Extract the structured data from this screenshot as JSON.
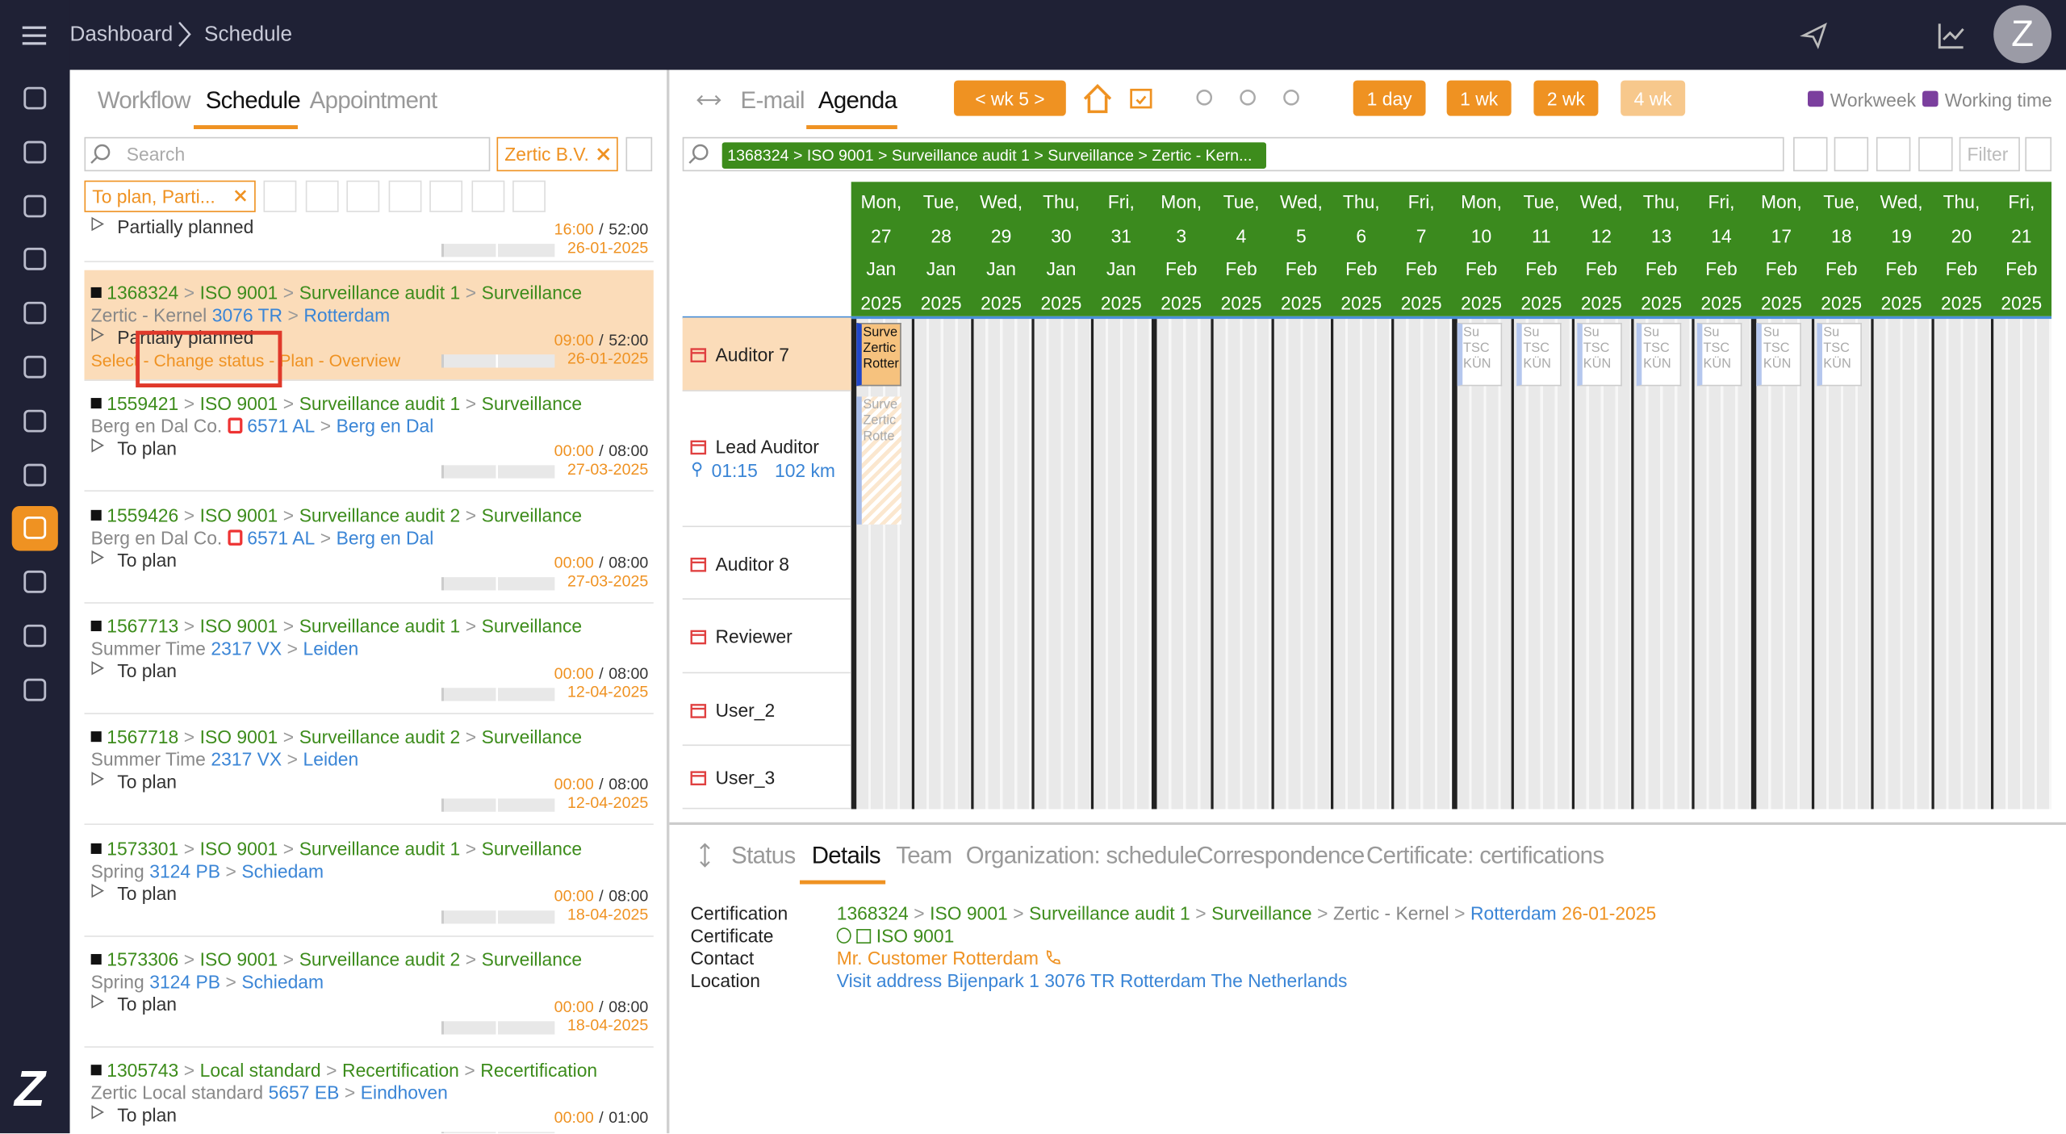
{
  "header": {
    "breadcrumb": [
      "Dashboard",
      "Schedule"
    ],
    "avatar": "Z",
    "logo": "Z"
  },
  "separator": ">",
  "time_separator": "/",
  "left_panel": {
    "tabs": [
      "Workflow",
      "Schedule",
      "Appointment"
    ],
    "active_tab": 1,
    "search_placeholder": "Search",
    "organization_filter": "Zertic B.V.",
    "status_filter": "To plan, Parti...",
    "items": [
      {
        "status": "Partially planned",
        "start": "16:00",
        "duration": "52:00",
        "date": "26-01-2025"
      },
      {
        "path": [
          "1368324",
          "ISO 9001",
          "Surveillance audit 1",
          "Surveillance"
        ],
        "organization": "Zertic - Kernel",
        "postcode": "3076 TR",
        "city": "Rotterdam",
        "status": "Partially planned",
        "start": "09:00",
        "duration": "52:00",
        "date": "26-01-2025",
        "actions": "Select - Change status - Plan - Overview",
        "selected": true
      },
      {
        "path": [
          "1559421",
          "ISO 9001",
          "Surveillance audit 1",
          "Surveillance"
        ],
        "organization": "Berg en Dal Co.",
        "postcode": "6571 AL",
        "city": "Berg en Dal",
        "status": "To plan",
        "start": "00:00",
        "duration": "08:00",
        "date": "27-03-2025",
        "flag": true
      },
      {
        "path": [
          "1559426",
          "ISO 9001",
          "Surveillance audit 2",
          "Surveillance"
        ],
        "organization": "Berg en Dal Co.",
        "postcode": "6571 AL",
        "city": "Berg en Dal",
        "status": "To plan",
        "start": "00:00",
        "duration": "08:00",
        "date": "27-03-2025",
        "flag": true
      },
      {
        "path": [
          "1567713",
          "ISO 9001",
          "Surveillance audit 1",
          "Surveillance"
        ],
        "organization": "Summer Time",
        "postcode": "2317 VX",
        "city": "Leiden",
        "status": "To plan",
        "start": "00:00",
        "duration": "08:00",
        "date": "12-04-2025"
      },
      {
        "path": [
          "1567718",
          "ISO 9001",
          "Surveillance audit 2",
          "Surveillance"
        ],
        "organization": "Summer Time",
        "postcode": "2317 VX",
        "city": "Leiden",
        "status": "To plan",
        "start": "00:00",
        "duration": "08:00",
        "date": "12-04-2025"
      },
      {
        "path": [
          "1573301",
          "ISO 9001",
          "Surveillance audit 1",
          "Surveillance"
        ],
        "organization": "Spring",
        "postcode": "3124 PB",
        "city": "Schiedam",
        "status": "To plan",
        "start": "00:00",
        "duration": "08:00",
        "date": "18-04-2025"
      },
      {
        "path": [
          "1573306",
          "ISO 9001",
          "Surveillance audit 2",
          "Surveillance"
        ],
        "organization": "Spring",
        "postcode": "3124 PB",
        "city": "Schiedam",
        "status": "To plan",
        "start": "00:00",
        "duration": "08:00",
        "date": "18-04-2025"
      },
      {
        "path": [
          "1305743",
          "Local standard",
          "Recertification",
          "Recertification"
        ],
        "organization": "Zertic Local standard",
        "postcode": "5657 EB",
        "city": "Eindhoven",
        "status": "To plan",
        "start": "00:00",
        "duration": "01:00"
      }
    ]
  },
  "right_panel": {
    "tabs": [
      "E-mail",
      "Agenda"
    ],
    "active_tab": 1,
    "week": "< wk 5 >",
    "ranges": [
      "1 day",
      "1 wk",
      "2 wk",
      "4 wk"
    ],
    "active_range": 3,
    "options": [
      "Workweek",
      "Working time"
    ],
    "filter_chip": "1368324 > ISO 9001 > Surveillance audit 1 > Surveillance > Zertic - Kern...",
    "filter_button": "Filter",
    "days": [
      "Mon, 27 Jan 2025",
      "Tue, 28 Jan 2025",
      "Wed, 29 Jan 2025",
      "Thu, 30 Jan 2025",
      "Fri, 31 Jan 2025",
      "Mon, 3 Feb 2025",
      "Tue, 4 Feb 2025",
      "Wed, 5 Feb 2025",
      "Thu, 6 Feb 2025",
      "Fri, 7 Feb 2025",
      "Mon, 10 Feb 2025",
      "Tue, 11 Feb 2025",
      "Wed, 12 Feb 2025",
      "Thu, 13 Feb 2025",
      "Fri, 14 Feb 2025",
      "Mon, 17 Feb 2025",
      "Tue, 18 Feb 2025",
      "Wed, 19 Feb 2025",
      "Thu, 20 Feb 2025",
      "Fri, 21 Feb 2025"
    ],
    "resources": [
      {
        "name": "Auditor 7",
        "selected": true,
        "events": [
          {
            "day": "Mon, 27 Jan 2025",
            "label": "Surve Zertic Rotter",
            "kind": "planned"
          },
          {
            "day": "Mon, 10 Feb 2025",
            "label": "Su TSC KÜN",
            "kind": "other"
          },
          {
            "day": "Tue, 11 Feb 2025",
            "label": "Su TSC KÜN",
            "kind": "other"
          },
          {
            "day": "Wed, 12 Feb 2025",
            "label": "Su TSC KÜN",
            "kind": "other"
          },
          {
            "day": "Thu, 13 Feb 2025",
            "label": "Su TSC KÜN",
            "kind": "other"
          },
          {
            "day": "Fri, 14 Feb 2025",
            "label": "Su TSC KÜN",
            "kind": "other"
          },
          {
            "day": "Mon, 17 Feb 2025",
            "label": "Su TSC KÜN",
            "kind": "other"
          },
          {
            "day": "Tue, 18 Feb 2025",
            "label": "Su TSC KÜN",
            "kind": "other"
          }
        ]
      },
      {
        "name": "Lead Auditor",
        "travel_time": "01:15",
        "distance": "102 km",
        "events": [
          {
            "day": "Mon, 27 Jan 2025",
            "label": "Surve Zertic Rotte",
            "kind": "tentative"
          }
        ]
      },
      {
        "name": "Auditor 8",
        "events": []
      },
      {
        "name": "Reviewer",
        "events": []
      },
      {
        "name": "User_2",
        "events": []
      },
      {
        "name": "User_3",
        "events": []
      }
    ]
  },
  "bottom_panel": {
    "tabs": [
      "Status",
      "Details",
      "Team",
      "Organization: schedule",
      "Correspondence",
      "Certificate: certifications"
    ],
    "active_tab": 1,
    "details": {
      "labels": [
        "Certification",
        "Certificate",
        "Contact",
        "Location"
      ],
      "certification": {
        "path": [
          "1368324",
          "ISO 9001",
          "Surveillance audit 1",
          "Surveillance"
        ],
        "organization": "Zertic - Kernel",
        "city": "Rotterdam",
        "date": "26-01-2025"
      },
      "certificate": "ISO 9001",
      "contact": "Mr. Customer Rotterdam",
      "location": "Visit address Bijenpark 1 3076 TR Rotterdam The Netherlands"
    }
  }
}
